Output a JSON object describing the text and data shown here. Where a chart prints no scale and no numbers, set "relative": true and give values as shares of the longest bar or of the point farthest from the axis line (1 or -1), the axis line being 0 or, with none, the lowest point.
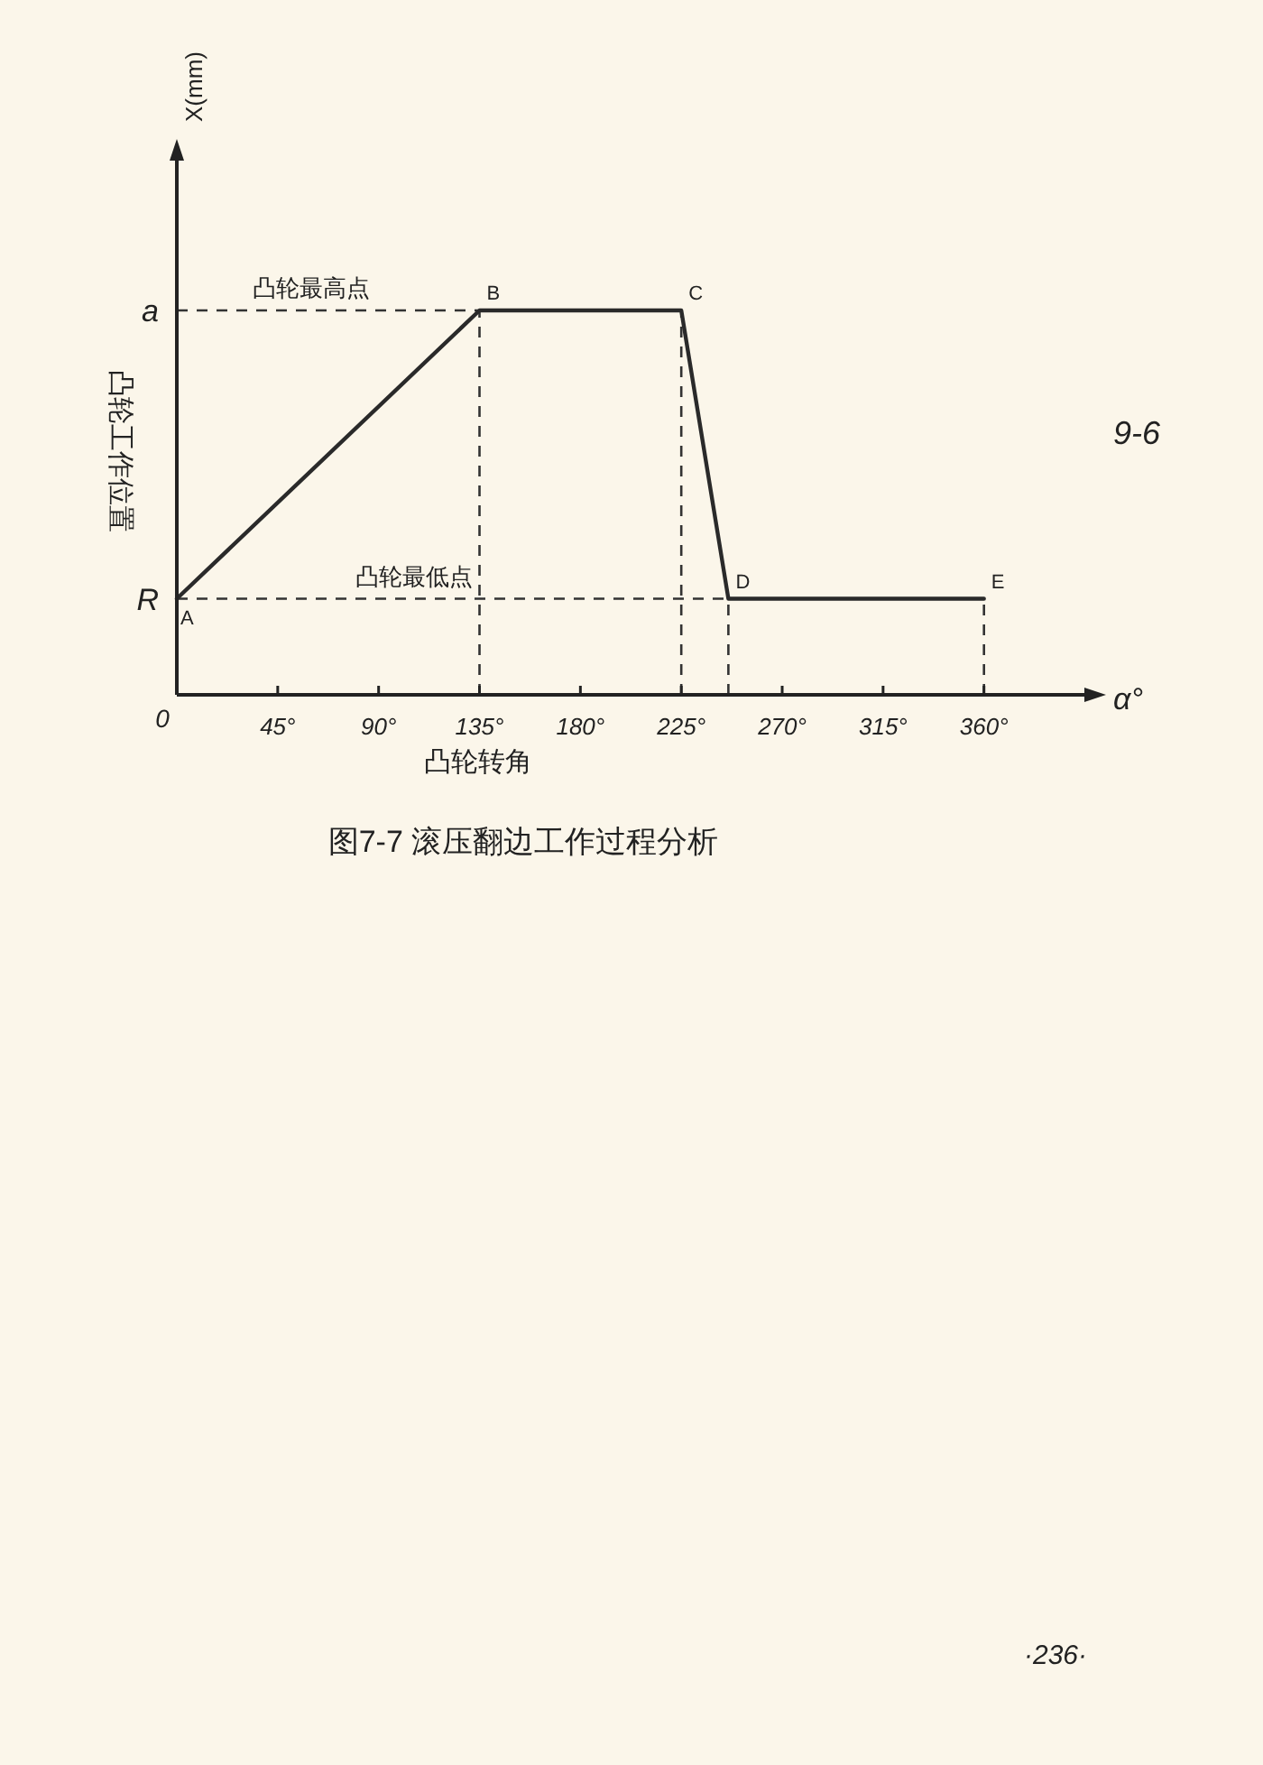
{
  "chart_data": {
    "type": "line",
    "title": "图7-7 滚压翻边工作过程分析",
    "xlabel": "凸轮转角",
    "ylabel": "凸轮工作位置",
    "relative": true,
    "x": [
      0,
      135,
      225,
      246,
      360
    ],
    "series": [
      {
        "color": "#2a2a2a",
        "values": [
          0.25,
          1,
          1,
          0.25,
          0.25
        ]
      }
    ],
    "xlim": [
      0,
      408
    ],
    "xticks": [
      {
        "value": 0,
        "label": "0"
      },
      {
        "value": 45,
        "label": "45°"
      },
      {
        "value": 90,
        "label": "90°"
      },
      {
        "value": 135,
        "label": "135°"
      },
      {
        "value": 180,
        "label": "180°"
      },
      {
        "value": 225,
        "label": "225°"
      },
      {
        "value": 270,
        "label": "270°"
      },
      {
        "value": 315,
        "label": "315°"
      },
      {
        "value": 360,
        "label": "360°"
      }
    ],
    "ref_lines": [
      {
        "axis": "y",
        "value": 1,
        "label": "a",
        "line_style": "dashed"
      },
      {
        "axis": "y",
        "value": 0.25,
        "label": "R",
        "line_style": "dashed"
      },
      {
        "axis": "x",
        "value": 135,
        "line_style": "dashed"
      },
      {
        "axis": "x",
        "value": 225,
        "line_style": "dashed"
      },
      {
        "axis": "x",
        "value": 246,
        "line_style": "dashed"
      },
      {
        "axis": "x",
        "value": 360,
        "line_style": "dashed"
      }
    ],
    "annotations": [
      "X(mm)",
      "α°",
      "9-6",
      "·236·",
      {
        "text": "A",
        "x": 0,
        "y": 0.25
      },
      {
        "text": "B",
        "x": 135,
        "y": 1
      },
      {
        "text": "C",
        "x": 225,
        "y": 1
      },
      {
        "text": "D",
        "x": 246,
        "y": 0.25
      },
      {
        "text": "E",
        "x": 360,
        "y": 0.25
      },
      {
        "text": "凸轮最高点",
        "x": 60,
        "y": 1
      },
      {
        "text": "凸轮最低点",
        "x": 106,
        "y": 0.25
      }
    ]
  }
}
